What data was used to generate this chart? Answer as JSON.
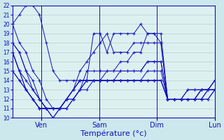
{
  "background_color": "#cce8ec",
  "plot_bg_color": "#ddf0f0",
  "grid_color": "#aacccc",
  "line_color": "#1010bb",
  "marker_color": "#2020cc",
  "xlabel": "Température (°c)",
  "ylim": [
    10,
    22
  ],
  "yticks": [
    10,
    11,
    12,
    13,
    14,
    15,
    16,
    17,
    18,
    19,
    20,
    21,
    22
  ],
  "day_labels": [
    "Ven",
    "Sam",
    "Dim",
    "Lun"
  ],
  "series": [
    [
      20,
      18,
      17,
      15,
      14,
      12,
      11,
      11,
      11,
      12,
      13,
      15,
      15,
      15,
      15,
      15,
      16,
      16,
      17,
      17,
      19,
      19,
      19,
      12,
      12,
      12,
      13,
      13,
      13,
      13,
      14
    ],
    [
      18,
      17,
      15,
      14,
      12,
      11,
      11,
      11,
      12,
      13,
      15,
      16,
      17,
      18,
      19,
      17,
      17,
      17,
      18,
      18,
      18,
      18,
      18,
      12,
      12,
      12,
      12,
      12,
      13,
      13,
      14
    ],
    [
      17,
      15,
      14,
      13,
      12,
      11,
      11,
      11,
      12,
      13,
      14,
      14,
      14,
      14,
      14,
      14,
      15,
      15,
      15,
      15,
      16,
      16,
      16,
      12,
      12,
      12,
      12,
      12,
      13,
      13,
      13
    ],
    [
      17,
      15,
      13,
      12,
      11,
      11,
      10,
      11,
      12,
      13,
      14,
      14,
      14,
      14,
      14,
      14,
      14,
      14,
      14,
      14,
      15,
      15,
      15,
      12,
      12,
      12,
      12,
      12,
      12,
      13,
      13
    ],
    [
      17,
      15,
      13,
      12,
      11,
      11,
      10,
      11,
      12,
      13,
      14,
      14,
      14,
      14,
      14,
      14,
      14,
      14,
      14,
      14,
      14,
      14,
      14,
      12,
      12,
      12,
      12,
      12,
      12,
      13,
      13
    ],
    [
      15,
      14,
      13,
      12,
      11,
      11,
      11,
      11,
      12,
      12,
      13,
      14,
      14,
      14,
      14,
      14,
      14,
      14,
      14,
      14,
      14,
      14,
      14,
      12,
      12,
      12,
      12,
      12,
      12,
      12,
      13
    ],
    [
      15,
      14,
      13,
      12,
      11,
      11,
      11,
      11,
      12,
      12,
      13,
      13,
      14,
      14,
      14,
      14,
      14,
      14,
      14,
      14,
      14,
      14,
      14,
      12,
      12,
      12,
      12,
      12,
      12,
      12,
      13
    ],
    [
      20,
      21,
      22,
      22,
      21,
      18,
      15,
      14,
      14,
      14,
      14,
      14,
      19,
      19,
      17,
      19,
      19,
      19,
      19,
      20,
      19,
      19,
      18,
      12,
      12,
      12,
      13,
      13,
      13,
      13,
      13
    ],
    [
      18,
      17,
      15,
      13,
      12,
      11,
      11,
      11,
      11,
      12,
      13,
      14,
      14,
      14,
      15,
      15,
      15,
      15,
      15,
      15,
      16,
      16,
      16,
      12,
      12,
      12,
      12,
      12,
      13,
      13,
      14
    ]
  ]
}
